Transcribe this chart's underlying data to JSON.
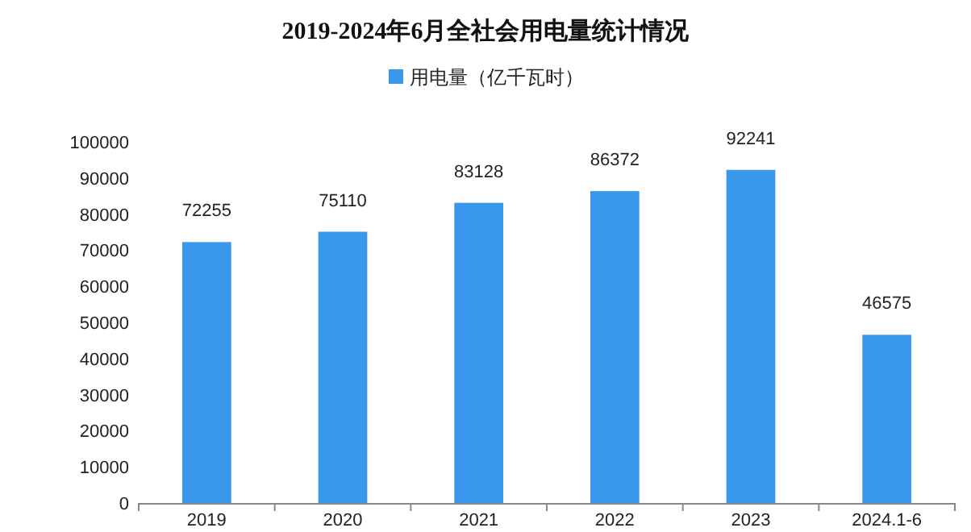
{
  "chart_data": {
    "type": "bar",
    "title": "2019-2024年6月全社会用电量统计情况",
    "categories": [
      "2019",
      "2020",
      "2021",
      "2022",
      "2023",
      "2024.1-6"
    ],
    "series": [
      {
        "name": "用电量（亿千瓦时）",
        "color": "#3a98ec",
        "values": [
          72255,
          75110,
          83128,
          86372,
          92241,
          46575
        ]
      }
    ],
    "ylim": [
      0,
      100000
    ],
    "yticks": [
      0,
      10000,
      20000,
      30000,
      40000,
      50000,
      60000,
      70000,
      80000,
      90000,
      100000
    ],
    "data_labels": true,
    "legend": "top"
  }
}
